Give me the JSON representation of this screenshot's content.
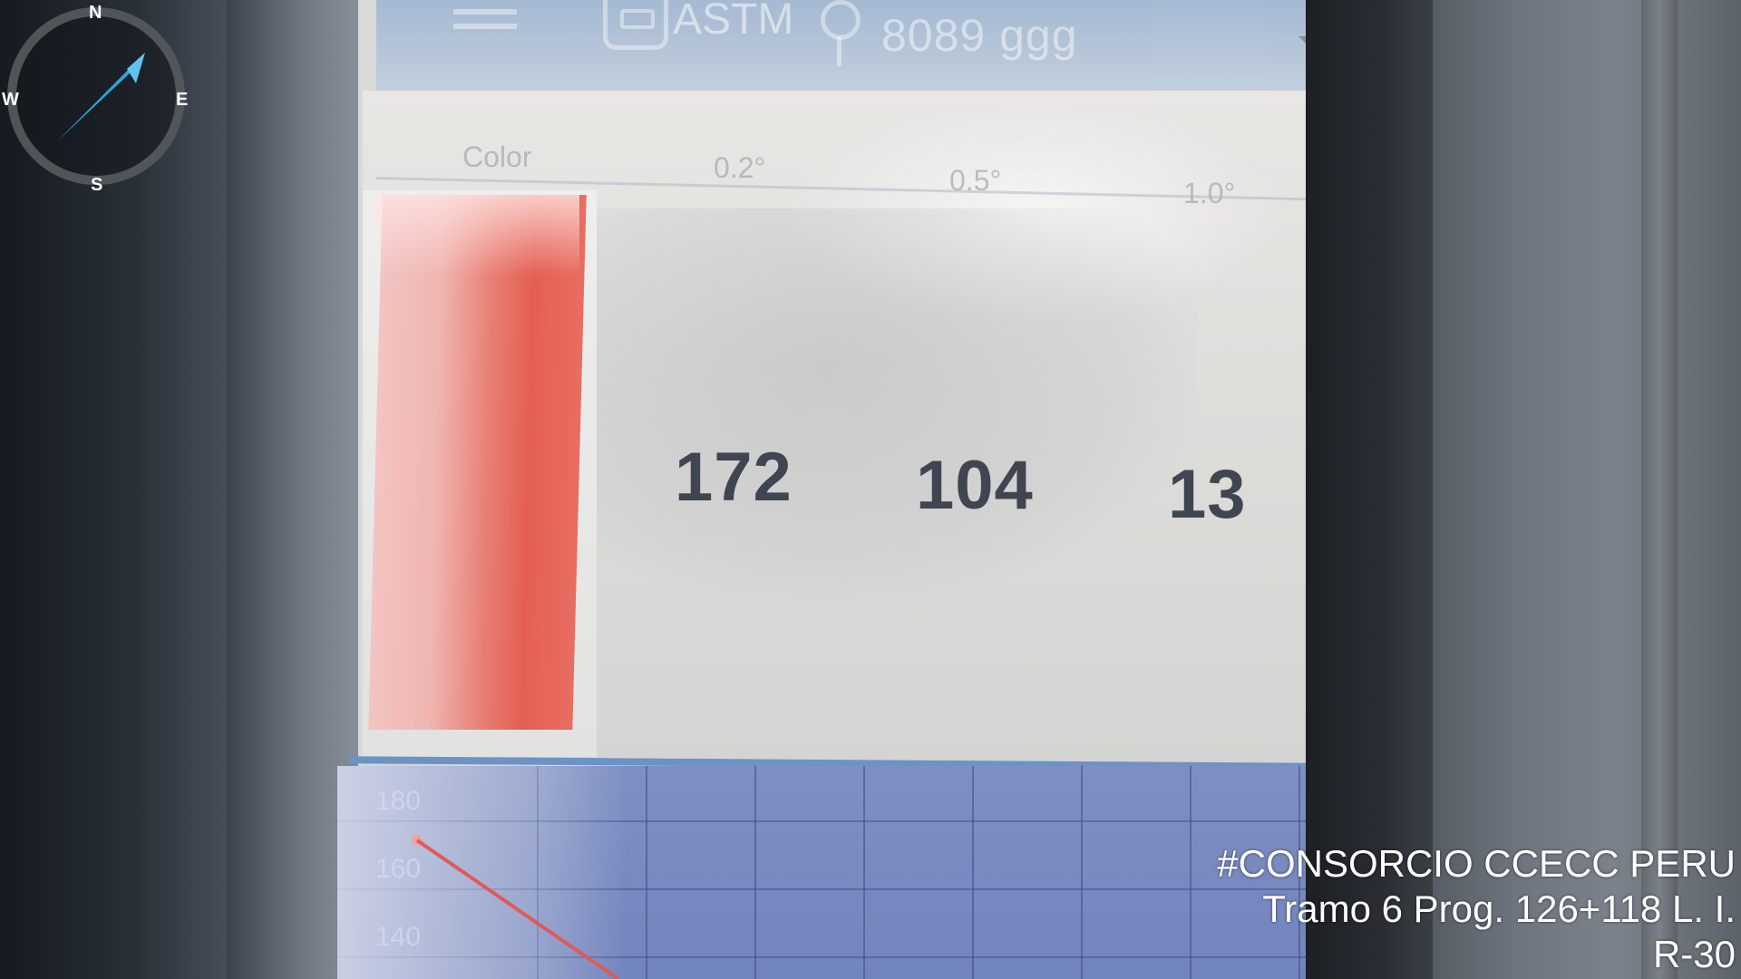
{
  "compass": {
    "north": "N",
    "south": "S",
    "west": "W",
    "east": "E",
    "heading_icon": "compass-needle-icon",
    "needle_color": "#2aa7e0"
  },
  "device_screen": {
    "header": {
      "standard": "ASTM",
      "serial": "8089 ggg",
      "icons": [
        "menu-icon",
        "device-icon",
        "location-pin-icon",
        "dropdown-arrow-icon"
      ]
    },
    "table": {
      "columns": [
        "Color",
        "0.2°",
        "0.5°",
        "1.0°"
      ],
      "swatch_color": "#e45f52",
      "values": [
        "172",
        "104",
        "13"
      ]
    },
    "graph": {
      "y_ticks": [
        "180",
        "160",
        "140"
      ],
      "background_color": "#7284bd",
      "line_color": "#e05a57"
    }
  },
  "overlay": {
    "line1": "#CONSORCIO CCECC PERU",
    "line2": "Tramo 6 Prog. 126+118 L. I.",
    "line3": "R-30"
  }
}
